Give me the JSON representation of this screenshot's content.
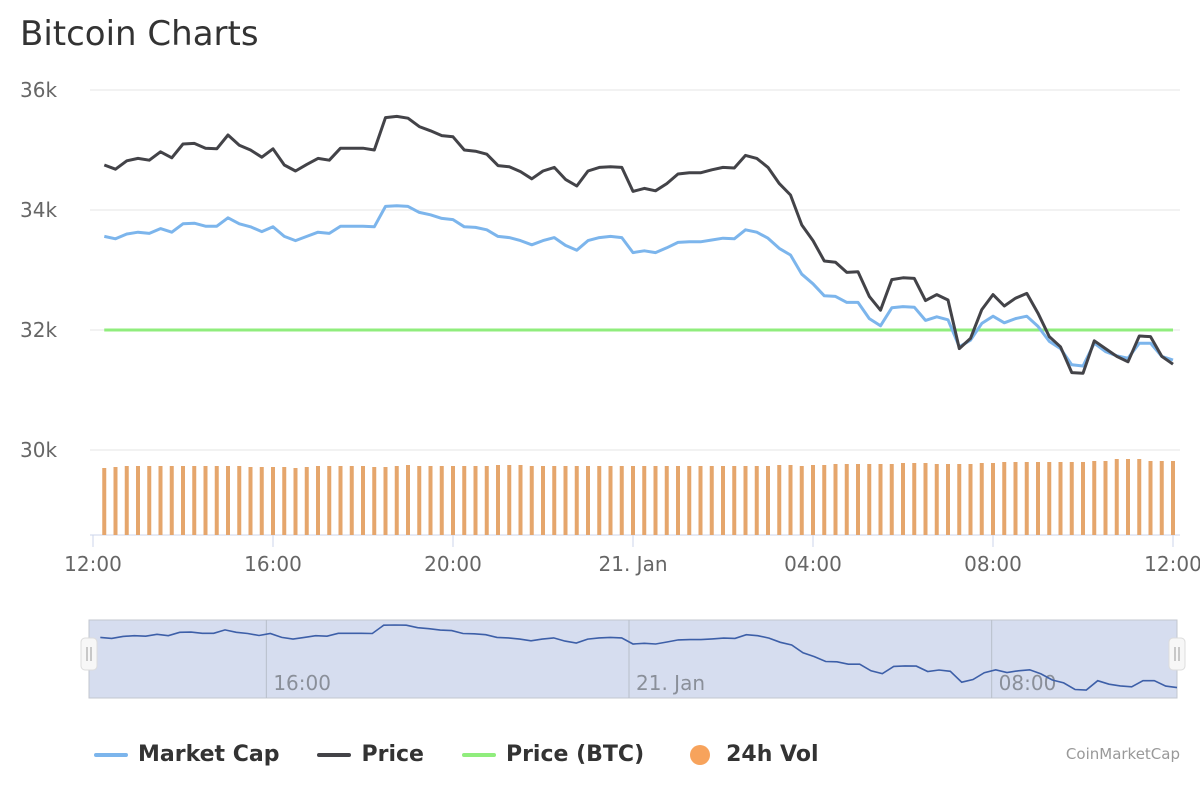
{
  "title": "Bitcoin Charts",
  "credit": "CoinMarketCap",
  "chart_data": {
    "type": "line",
    "title": "Bitcoin Charts",
    "xlabel": "",
    "ylabel": "",
    "ylim": [
      28580,
      36000
    ],
    "y_ticks": [
      "36k",
      "34k",
      "32k",
      "30k"
    ],
    "y_tick_values": [
      36000,
      34000,
      32000,
      30000
    ],
    "x_ticks": [
      "12:00",
      "16:00",
      "20:00",
      "21. Jan",
      "04:00",
      "08:00",
      "12:00"
    ],
    "navigator_ticks": [
      "16:00",
      "21. Jan",
      "08:00"
    ],
    "grid": true,
    "legend_placement": "bottom",
    "x": [
      "12:15",
      "12:30",
      "12:45",
      "13:00",
      "13:15",
      "13:30",
      "13:45",
      "14:00",
      "14:15",
      "14:30",
      "14:45",
      "15:00",
      "15:15",
      "15:30",
      "15:45",
      "16:00",
      "16:15",
      "16:30",
      "16:45",
      "17:00",
      "17:15",
      "17:30",
      "17:45",
      "18:00",
      "18:15",
      "18:30",
      "18:45",
      "19:00",
      "19:15",
      "19:30",
      "19:45",
      "20:00",
      "20:15",
      "20:30",
      "20:45",
      "21:00",
      "21:15",
      "21:30",
      "21:45",
      "22:00",
      "22:15",
      "22:30",
      "22:45",
      "23:00",
      "23:15",
      "23:30",
      "23:45",
      "00:00",
      "00:15",
      "00:30",
      "00:45",
      "01:00",
      "01:15",
      "01:30",
      "01:45",
      "02:00",
      "02:15",
      "02:30",
      "02:45",
      "03:00",
      "03:15",
      "03:30",
      "03:45",
      "04:00",
      "04:15",
      "04:30",
      "04:45",
      "05:00",
      "05:15",
      "05:30",
      "05:45",
      "06:00",
      "06:15",
      "06:30",
      "06:45",
      "07:00",
      "07:15",
      "07:30",
      "07:45",
      "08:00",
      "08:15",
      "08:30",
      "08:45",
      "09:00",
      "09:15",
      "09:30",
      "09:45",
      "10:00",
      "10:15",
      "10:30",
      "10:45",
      "11:00",
      "11:15",
      "11:30",
      "11:45",
      "12:00"
    ],
    "series": [
      {
        "name": "Market Cap",
        "color": "#7cb5ec",
        "type": "line",
        "values": [
          33.56,
          33.52,
          33.6,
          33.63,
          33.61,
          33.69,
          33.63,
          33.77,
          33.78,
          33.73,
          33.73,
          33.87,
          33.77,
          33.72,
          33.64,
          33.72,
          33.56,
          33.49,
          33.56,
          33.63,
          33.61,
          33.73,
          33.73,
          33.73,
          33.72,
          34.06,
          34.07,
          34.06,
          33.96,
          33.92,
          33.86,
          33.84,
          33.72,
          33.71,
          33.67,
          33.56,
          33.54,
          33.49,
          33.42,
          33.49,
          33.54,
          33.41,
          33.33,
          33.49,
          33.54,
          33.56,
          33.54,
          33.29,
          33.32,
          33.29,
          33.37,
          33.46,
          33.47,
          33.47,
          33.5,
          33.53,
          33.52,
          33.67,
          33.63,
          33.53,
          33.36,
          33.25,
          32.93,
          32.77,
          32.57,
          32.56,
          32.46,
          32.46,
          32.19,
          32.07,
          32.37,
          32.39,
          32.38,
          32.16,
          32.22,
          32.17,
          31.72,
          31.83,
          32.11,
          32.23,
          32.12,
          32.19,
          32.23,
          32.06,
          31.81,
          31.69,
          31.42,
          31.4,
          31.78,
          31.64,
          31.57,
          31.53,
          31.78,
          31.78,
          31.56,
          31.5
        ],
        "value_unit": "k on price-scaled axis"
      },
      {
        "name": "Price",
        "color": "#434348",
        "type": "line",
        "values": [
          34.75,
          34.68,
          34.82,
          34.86,
          34.83,
          34.97,
          34.87,
          35.1,
          35.11,
          35.03,
          35.02,
          35.25,
          35.08,
          35.0,
          34.88,
          35.02,
          34.75,
          34.65,
          34.76,
          34.86,
          34.83,
          35.03,
          35.03,
          35.03,
          35.0,
          35.54,
          35.56,
          35.53,
          35.39,
          35.32,
          35.24,
          35.22,
          35.0,
          34.98,
          34.93,
          34.74,
          34.72,
          34.64,
          34.52,
          34.65,
          34.71,
          34.51,
          34.4,
          34.65,
          34.71,
          34.72,
          34.71,
          34.31,
          34.36,
          34.32,
          34.44,
          34.6,
          34.62,
          34.62,
          34.67,
          34.71,
          34.7,
          34.91,
          34.86,
          34.71,
          34.44,
          34.25,
          33.75,
          33.49,
          33.15,
          33.13,
          32.96,
          32.97,
          32.56,
          32.33,
          32.84,
          32.87,
          32.86,
          32.49,
          32.59,
          32.5,
          31.69,
          31.86,
          32.34,
          32.59,
          32.4,
          32.53,
          32.61,
          32.28,
          31.89,
          31.72,
          31.29,
          31.28,
          31.82,
          31.69,
          31.56,
          31.47,
          31.9,
          31.89,
          31.56,
          31.43
        ],
        "value_unit": "k USD"
      },
      {
        "name": "Price (BTC)",
        "color": "#90ed7d",
        "type": "line",
        "constant": 1
      },
      {
        "name": "24h Vol",
        "color": "#f7a35c",
        "type": "bar",
        "axis": "hidden",
        "values": [
          67,
          68,
          69,
          69,
          69,
          69,
          69,
          69,
          69,
          69,
          69,
          69,
          69,
          68,
          68,
          68,
          68,
          67,
          68,
          69,
          69,
          69,
          69,
          69,
          68,
          68,
          69,
          70,
          69,
          69,
          69,
          69,
          69,
          69,
          69,
          70,
          70,
          70,
          69,
          69,
          69,
          69,
          69,
          69,
          69,
          69,
          69,
          69,
          69,
          69,
          69,
          69,
          69,
          69,
          69,
          69,
          69,
          69,
          69,
          69,
          70,
          70,
          69,
          70,
          70,
          71,
          71,
          71,
          71,
          71,
          71,
          72,
          72,
          72,
          71,
          71,
          71,
          71,
          72,
          72,
          73,
          73,
          73,
          73,
          73,
          73,
          73,
          73,
          74,
          74,
          76,
          76,
          76,
          74,
          74,
          74
        ]
      }
    ]
  }
}
